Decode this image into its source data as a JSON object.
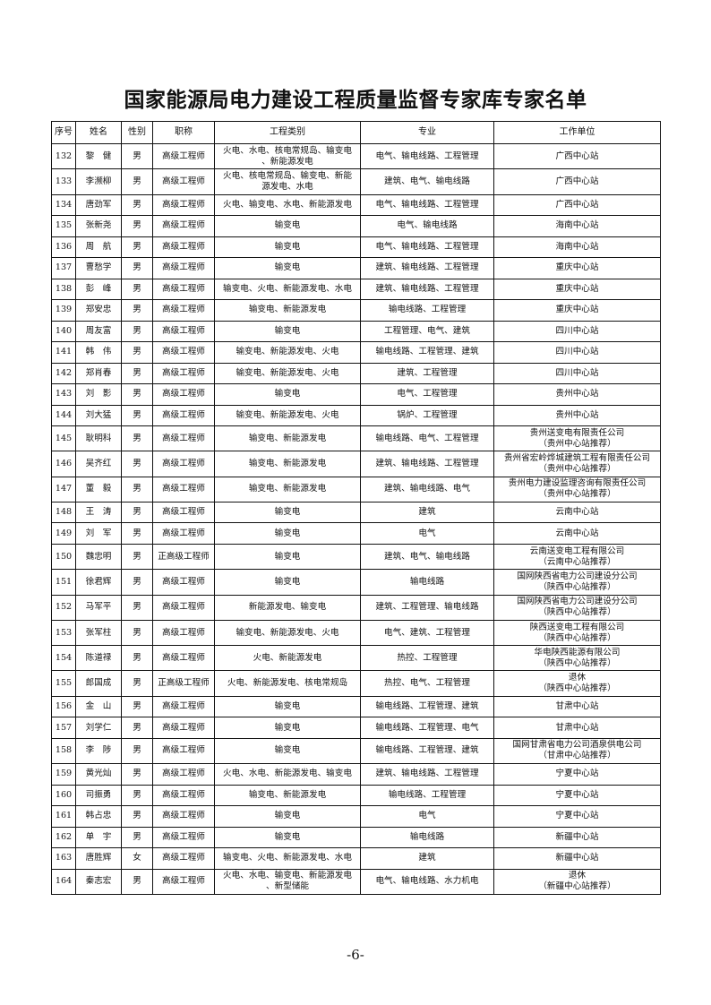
{
  "title": "国家能源局电力建设工程质量监督专家库专家名单",
  "columns": [
    "序号",
    "姓名",
    "性别",
    "职称",
    "工程类别",
    "专业",
    "工作单位"
  ],
  "rows": [
    {
      "no": "132",
      "name": "黎　健",
      "gender": "男",
      "title": "高级工程师",
      "category": "火电、水电、核电常规岛、输变电\n、新能源发电",
      "major": "电气、输电线路、工程管理",
      "unit": "广西中心站"
    },
    {
      "no": "133",
      "name": "李濒柳",
      "gender": "男",
      "title": "高级工程师",
      "category": "火电、核电常规岛、输变电、新能\n源发电、水电",
      "major": "建筑、电气、输电线路",
      "unit": "广西中心站"
    },
    {
      "no": "134",
      "name": "唐劲军",
      "gender": "男",
      "title": "高级工程师",
      "category": "火电、输变电、水电、新能源发电",
      "major": "电气、输电线路、工程管理",
      "unit": "广西中心站"
    },
    {
      "no": "135",
      "name": "张新尧",
      "gender": "男",
      "title": "高级工程师",
      "category": "输变电",
      "major": "电气、输电线路",
      "unit": "海南中心站"
    },
    {
      "no": "136",
      "name": "周　航",
      "gender": "男",
      "title": "高级工程师",
      "category": "输变电",
      "major": "电气、输电线路、工程管理",
      "unit": "海南中心站"
    },
    {
      "no": "137",
      "name": "曹愁学",
      "gender": "男",
      "title": "高级工程师",
      "category": "输变电",
      "major": "建筑、输电线路、工程管理",
      "unit": "重庆中心站"
    },
    {
      "no": "138",
      "name": "彭　峰",
      "gender": "男",
      "title": "高级工程师",
      "category": "输变电、火电、新能源发电、水电",
      "major": "建筑、输电线路、工程管理",
      "unit": "重庆中心站"
    },
    {
      "no": "139",
      "name": "郑安忠",
      "gender": "男",
      "title": "高级工程师",
      "category": "输变电、新能源发电",
      "major": "输电线路、工程管理",
      "unit": "重庆中心站"
    },
    {
      "no": "140",
      "name": "周友富",
      "gender": "男",
      "title": "高级工程师",
      "category": "输变电",
      "major": "工程管理、电气、建筑",
      "unit": "四川中心站"
    },
    {
      "no": "141",
      "name": "韩　伟",
      "gender": "男",
      "title": "高级工程师",
      "category": "输变电、新能源发电、火电",
      "major": "输电线路、工程管理、建筑",
      "unit": "四川中心站"
    },
    {
      "no": "142",
      "name": "郑肖春",
      "gender": "男",
      "title": "高级工程师",
      "category": "输变电、新能源发电、火电",
      "major": "建筑、工程管理",
      "unit": "四川中心站"
    },
    {
      "no": "143",
      "name": "刘　影",
      "gender": "男",
      "title": "高级工程师",
      "category": "输变电",
      "major": "电气、工程管理",
      "unit": "贵州中心站"
    },
    {
      "no": "144",
      "name": "刘大猛",
      "gender": "男",
      "title": "高级工程师",
      "category": "输变电、新能源发电、火电",
      "major": "锅炉、工程管理",
      "unit": "贵州中心站"
    },
    {
      "no": "145",
      "name": "耿明科",
      "gender": "男",
      "title": "高级工程师",
      "category": "输变电、新能源发电",
      "major": "输电线路、电气、工程管理",
      "unit": "贵州送变电有限责任公司\n（贵州中心站推荐）"
    },
    {
      "no": "146",
      "name": "吴齐红",
      "gender": "男",
      "title": "高级工程师",
      "category": "输变电、新能源发电",
      "major": "建筑、输电线路、工程管理",
      "unit": "贵州省宏岭烨城建筑工程有限责任公司\n（贵州中心站推荐）"
    },
    {
      "no": "147",
      "name": "董　毅",
      "gender": "男",
      "title": "高级工程师",
      "category": "输变电、新能源发电",
      "major": "建筑、输电线路、电气",
      "unit": "贵州电力建设监理咨询有限责任公司\n（贵州中心站推荐）"
    },
    {
      "no": "148",
      "name": "王　涛",
      "gender": "男",
      "title": "高级工程师",
      "category": "输变电",
      "major": "建筑",
      "unit": "云南中心站"
    },
    {
      "no": "149",
      "name": "刘　军",
      "gender": "男",
      "title": "高级工程师",
      "category": "输变电",
      "major": "电气",
      "unit": "云南中心站"
    },
    {
      "no": "150",
      "name": "魏忠明",
      "gender": "男",
      "title": "正高级工程师",
      "category": "输变电",
      "major": "建筑、电气、输电线路",
      "unit": "云南送变电工程有限公司\n（云南中心站推荐）"
    },
    {
      "no": "151",
      "name": "徐君辉",
      "gender": "男",
      "title": "高级工程师",
      "category": "输变电",
      "major": "输电线路",
      "unit": "国网陕西省电力公司建设分公司\n（陕西中心站推荐）"
    },
    {
      "no": "152",
      "name": "马军平",
      "gender": "男",
      "title": "高级工程师",
      "category": "新能源发电、输变电",
      "major": "建筑、工程管理、输电线路",
      "unit": "国网陕西省电力公司建设分公司\n（陕西中心站推荐）"
    },
    {
      "no": "153",
      "name": "张军柱",
      "gender": "男",
      "title": "高级工程师",
      "category": "输变电、新能源发电、火电",
      "major": "电气、建筑、工程管理",
      "unit": "陕西送变电工程有限公司\n（陕西中心站推荐）"
    },
    {
      "no": "154",
      "name": "陈道禄",
      "gender": "男",
      "title": "高级工程师",
      "category": "火电、新能源发电",
      "major": "热控、工程管理",
      "unit": "华电陕西能源有限公司\n（陕西中心站推荐）"
    },
    {
      "no": "155",
      "name": "郎国成",
      "gender": "男",
      "title": "正高级工程师",
      "category": "火电、新能源发电、核电常规岛",
      "major": "热控、电气、工程管理",
      "unit": "退休\n（陕西中心站推荐）"
    },
    {
      "no": "156",
      "name": "金　山",
      "gender": "男",
      "title": "高级工程师",
      "category": "输变电",
      "major": "输电线路、工程管理、建筑",
      "unit": "甘肃中心站"
    },
    {
      "no": "157",
      "name": "刘学仁",
      "gender": "男",
      "title": "高级工程师",
      "category": "输变电",
      "major": "输电线路、工程管理、电气",
      "unit": "甘肃中心站"
    },
    {
      "no": "158",
      "name": "李　陟",
      "gender": "男",
      "title": "高级工程师",
      "category": "输变电",
      "major": "输电线路、工程管理、建筑",
      "unit": "国网甘肃省电力公司酒泉供电公司\n（甘肃中心站推荐）"
    },
    {
      "no": "159",
      "name": "黄光灿",
      "gender": "男",
      "title": "高级工程师",
      "category": "火电、水电、新能源发电、输变电",
      "major": "建筑、输电线路、工程管理",
      "unit": "宁夏中心站"
    },
    {
      "no": "160",
      "name": "司振勇",
      "gender": "男",
      "title": "高级工程师",
      "category": "输变电、新能源发电",
      "major": "输电线路、工程管理",
      "unit": "宁夏中心站"
    },
    {
      "no": "161",
      "name": "韩占忠",
      "gender": "男",
      "title": "高级工程师",
      "category": "输变电",
      "major": "电气",
      "unit": "宁夏中心站"
    },
    {
      "no": "162",
      "name": "单　宇",
      "gender": "男",
      "title": "高级工程师",
      "category": "输变电",
      "major": "输电线路",
      "unit": "新疆中心站"
    },
    {
      "no": "163",
      "name": "唐胜辉",
      "gender": "女",
      "title": "高级工程师",
      "category": "输变电、火电、新能源发电、水电",
      "major": "建筑",
      "unit": "新疆中心站"
    },
    {
      "no": "164",
      "name": "秦志宏",
      "gender": "男",
      "title": "高级工程师",
      "category": "火电、水电、输变电、新能源发电\n、新型储能",
      "major": "电气、输电线路、水力机电",
      "unit": "退休\n（新疆中心站推荐）"
    }
  ],
  "page_number": "-6-"
}
